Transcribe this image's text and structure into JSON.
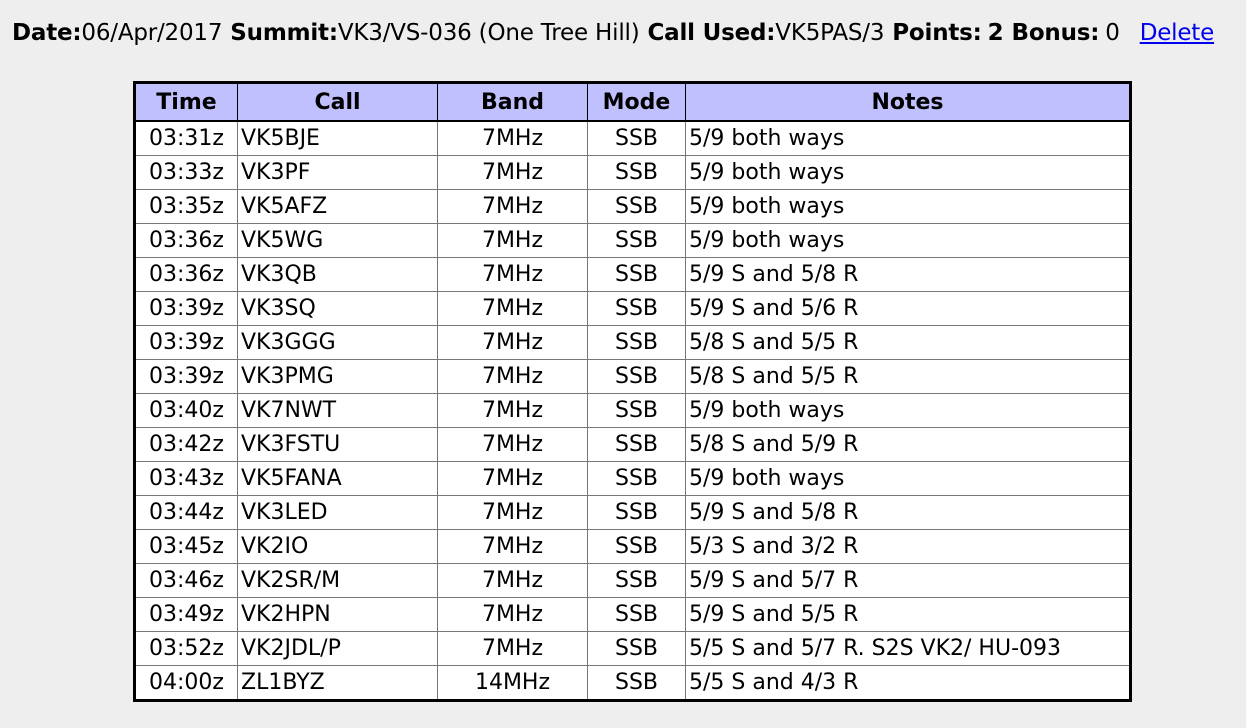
{
  "header": {
    "date_label": "Date:",
    "date_value": "06/Apr/2017",
    "summit_label": "Summit:",
    "summit_value": "VK3/VS-036 (One Tree Hill)",
    "call_label": "Call Used:",
    "call_value": "VK5PAS/3",
    "points_label": "Points:",
    "points_value": "2",
    "bonus_label": "Bonus:",
    "bonus_value": "0",
    "delete_link": "Delete"
  },
  "table": {
    "columns": [
      "Time",
      "Call",
      "Band",
      "Mode",
      "Notes"
    ],
    "rows": [
      [
        "03:31z",
        "VK5BJE",
        "7MHz",
        "SSB",
        "5/9 both ways"
      ],
      [
        "03:33z",
        "VK3PF",
        "7MHz",
        "SSB",
        "5/9 both ways"
      ],
      [
        "03:35z",
        "VK5AFZ",
        "7MHz",
        "SSB",
        "5/9 both ways"
      ],
      [
        "03:36z",
        "VK5WG",
        "7MHz",
        "SSB",
        "5/9 both ways"
      ],
      [
        "03:36z",
        "VK3QB",
        "7MHz",
        "SSB",
        "5/9 S and 5/8 R"
      ],
      [
        "03:39z",
        "VK3SQ",
        "7MHz",
        "SSB",
        "5/9 S and 5/6 R"
      ],
      [
        "03:39z",
        "VK3GGG",
        "7MHz",
        "SSB",
        "5/8 S and 5/5 R"
      ],
      [
        "03:39z",
        "VK3PMG",
        "7MHz",
        "SSB",
        "5/8 S and 5/5 R"
      ],
      [
        "03:40z",
        "VK7NWT",
        "7MHz",
        "SSB",
        "5/9 both ways"
      ],
      [
        "03:42z",
        "VK3FSTU",
        "7MHz",
        "SSB",
        "5/8 S and 5/9 R"
      ],
      [
        "03:43z",
        "VK5FANA",
        "7MHz",
        "SSB",
        "5/9 both ways"
      ],
      [
        "03:44z",
        "VK3LED",
        "7MHz",
        "SSB",
        "5/9 S and 5/8 R"
      ],
      [
        "03:45z",
        "VK2IO",
        "7MHz",
        "SSB",
        "5/3 S and 3/2 R"
      ],
      [
        "03:46z",
        "VK2SR/M",
        "7MHz",
        "SSB",
        "5/9 S and 5/7 R"
      ],
      [
        "03:49z",
        "VK2HPN",
        "7MHz",
        "SSB",
        "5/9 S and 5/5 R"
      ],
      [
        "03:52z",
        "VK2JDL/P",
        "7MHz",
        "SSB",
        "5/5 S and 5/7 R. S2S VK2/ HU-093"
      ],
      [
        "04:00z",
        "ZL1BYZ",
        "14MHz",
        "SSB",
        "5/5 S and 4/3 R"
      ]
    ]
  }
}
